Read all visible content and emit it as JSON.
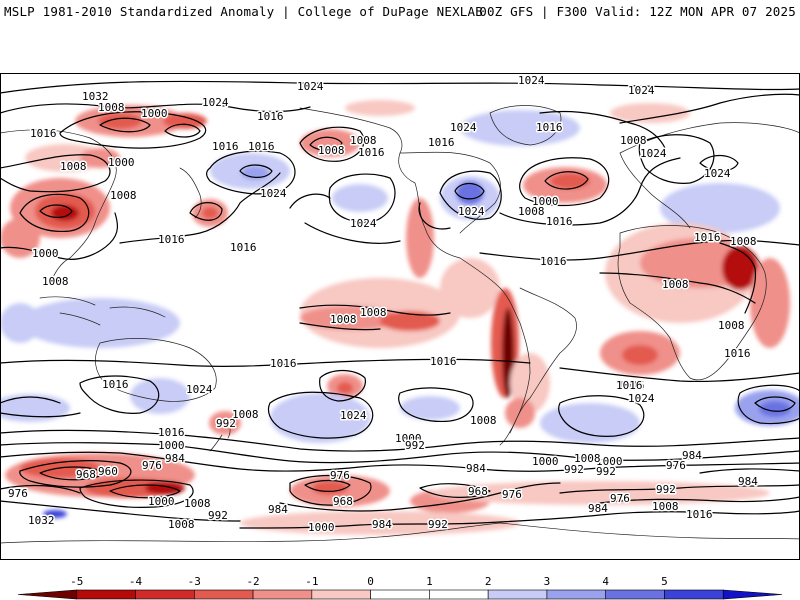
{
  "header": {
    "left": "MSLP 1981-2010 Standardized Anomaly | College of DuPage NEXLAB",
    "right": "00Z GFS | F300 Valid: 12Z MON APR 07 2025"
  },
  "colorbar": {
    "ticks": [
      "-5",
      "-4",
      "-3",
      "-2",
      "-1",
      "0",
      "1",
      "2",
      "3",
      "4",
      "5"
    ],
    "colors": [
      "#6e0000",
      "#b40a0a",
      "#d12a2a",
      "#e35a50",
      "#f0908a",
      "#f8c8c2",
      "#ffffff",
      "#ffffff",
      "#c8ccf6",
      "#9aa2ee",
      "#6a72e2",
      "#3a42d8",
      "#1212c8"
    ]
  },
  "map": {
    "contour_labels": [
      {
        "text": "1024",
        "name": "isobar-label-1024-npac"
      },
      {
        "text": "1024",
        "name": "isobar-label-1024-natl"
      },
      {
        "text": "1024",
        "name": "isobar-label-1024-europe"
      },
      {
        "text": "1032",
        "name": "isobar-label-1032-siberia"
      },
      {
        "text": "1024",
        "name": "isobar-label-1024-asia"
      },
      {
        "text": "1008",
        "name": "isobar-label-1008-asia"
      },
      {
        "text": "1000",
        "name": "isobar-label-1000-asia"
      },
      {
        "text": "1016",
        "name": "isobar-label-1016-asia"
      },
      {
        "text": "1016",
        "name": "isobar-label-1016-alaska"
      },
      {
        "text": "1016",
        "name": "isobar-label-1016-west"
      },
      {
        "text": "1008",
        "name": "isobar-label-1008-china"
      },
      {
        "text": "1000",
        "name": "isobar-label-1000-china"
      },
      {
        "text": "1016",
        "name": "isobar-label-1016-japan"
      },
      {
        "text": "1008",
        "name": "isobar-label-1008-japan"
      },
      {
        "text": "1008",
        "name": "isobar-label-1008-kamchatka"
      },
      {
        "text": "1016",
        "name": "isobar-label-1016-kamchatka"
      },
      {
        "text": "1008",
        "name": "isobar-label-1008-indochina"
      },
      {
        "text": "1000",
        "name": "isobar-label-1000-india"
      },
      {
        "text": "1008",
        "name": "isobar-label-1008-india"
      },
      {
        "text": "1024",
        "name": "isobar-label-1024-pacific"
      },
      {
        "text": "1016",
        "name": "isobar-label-1016-pacific"
      },
      {
        "text": "1016",
        "name": "isobar-label-1016-wpac"
      },
      {
        "text": "1024",
        "name": "isobar-label-1024-nepac"
      },
      {
        "text": "1016",
        "name": "isobar-label-1016-canada"
      },
      {
        "text": "1024",
        "name": "isobar-label-1024-usa"
      },
      {
        "text": "1024",
        "name": "isobar-label-1024-atl"
      },
      {
        "text": "1016",
        "name": "isobar-label-1016-atl"
      },
      {
        "text": "1008",
        "name": "isobar-label-1008-atl"
      },
      {
        "text": "1000",
        "name": "isobar-label-1000-atl"
      },
      {
        "text": "1016",
        "name": "isobar-label-1016-natl2"
      },
      {
        "text": "1008",
        "name": "isobar-label-1008-uk"
      },
      {
        "text": "1024",
        "name": "isobar-label-1024-scand"
      },
      {
        "text": "1024",
        "name": "isobar-label-1024-russia"
      },
      {
        "text": "1016",
        "name": "isobar-label-1016-caribbean"
      },
      {
        "text": "1008",
        "name": "isobar-label-1008-spac"
      },
      {
        "text": "1008",
        "name": "isobar-label-1008-spac2"
      },
      {
        "text": "1016",
        "name": "isobar-label-1016-africa"
      },
      {
        "text": "1008",
        "name": "isobar-label-1008-arabia"
      },
      {
        "text": "1008",
        "name": "isobar-label-1008-africa"
      },
      {
        "text": "1008",
        "name": "isobar-label-1008-africa2"
      },
      {
        "text": "1016",
        "name": "isobar-label-1016-africa2"
      },
      {
        "text": "1016",
        "name": "isobar-label-1016-sio"
      },
      {
        "text": "1016",
        "name": "isobar-label-1016-spac"
      },
      {
        "text": "1016",
        "name": "isobar-label-1016-aus"
      },
      {
        "text": "1024",
        "name": "isobar-label-1024-aus"
      },
      {
        "text": "1024",
        "name": "isobar-label-1024-spac"
      },
      {
        "text": "1016",
        "name": "isobar-label-1016-sa"
      },
      {
        "text": "1016",
        "name": "isobar-label-1016-satl"
      },
      {
        "text": "1024",
        "name": "isobar-label-1024-satl"
      },
      {
        "text": "1008",
        "name": "isobar-label-1008-tasman"
      },
      {
        "text": "992",
        "name": "isobar-label-992-nz"
      },
      {
        "text": "1016",
        "name": "isobar-label-1016-so1"
      },
      {
        "text": "1000",
        "name": "isobar-label-1000-so1"
      },
      {
        "text": "984",
        "name": "isobar-label-984-so1"
      },
      {
        "text": "976",
        "name": "isobar-label-976-so1"
      },
      {
        "text": "968",
        "name": "isobar-label-968-so1"
      },
      {
        "text": "960",
        "name": "isobar-label-960-so1"
      },
      {
        "text": "976",
        "name": "isobar-label-976-so0"
      },
      {
        "text": "1000",
        "name": "isobar-label-1000-so2"
      },
      {
        "text": "1008",
        "name": "isobar-label-1008-so2"
      },
      {
        "text": "992",
        "name": "isobar-label-992-so2"
      },
      {
        "text": "984",
        "name": "isobar-label-984-so2"
      },
      {
        "text": "1032",
        "name": "isobar-label-1032-so"
      },
      {
        "text": "1008",
        "name": "isobar-label-1008-so3"
      },
      {
        "text": "1000",
        "name": "isobar-label-1000-so3"
      },
      {
        "text": "984",
        "name": "isobar-label-984-so3"
      },
      {
        "text": "992",
        "name": "isobar-label-992-so3"
      },
      {
        "text": "976",
        "name": "isobar-label-976-so3"
      },
      {
        "text": "968",
        "name": "isobar-label-968-so3"
      },
      {
        "text": "1000",
        "name": "isobar-label-1000-so4"
      },
      {
        "text": "992",
        "name": "isobar-label-992-so4"
      },
      {
        "text": "1008",
        "name": "isobar-label-1008-so4"
      },
      {
        "text": "1000",
        "name": "isobar-label-1000-so5"
      },
      {
        "text": "992",
        "name": "isobar-label-992-so5"
      },
      {
        "text": "984",
        "name": "isobar-label-984-so5"
      },
      {
        "text": "968",
        "name": "isobar-label-968-so5"
      },
      {
        "text": "976",
        "name": "isobar-label-976-so5"
      },
      {
        "text": "1000",
        "name": "isobar-label-1000-so6"
      },
      {
        "text": "992",
        "name": "isobar-label-992-so6"
      },
      {
        "text": "1008",
        "name": "isobar-label-1008-so6"
      },
      {
        "text": "976",
        "name": "isobar-label-976-so6"
      },
      {
        "text": "984",
        "name": "isobar-label-984-so6"
      },
      {
        "text": "984",
        "name": "isobar-label-984-so7"
      },
      {
        "text": "976",
        "name": "isobar-label-976-so7"
      },
      {
        "text": "992",
        "name": "isobar-label-992-so7"
      },
      {
        "text": "984",
        "name": "isobar-label-984-so8"
      },
      {
        "text": "1008",
        "name": "isobar-label-1008-so8"
      },
      {
        "text": "1016",
        "name": "isobar-label-1016-so8"
      }
    ]
  }
}
